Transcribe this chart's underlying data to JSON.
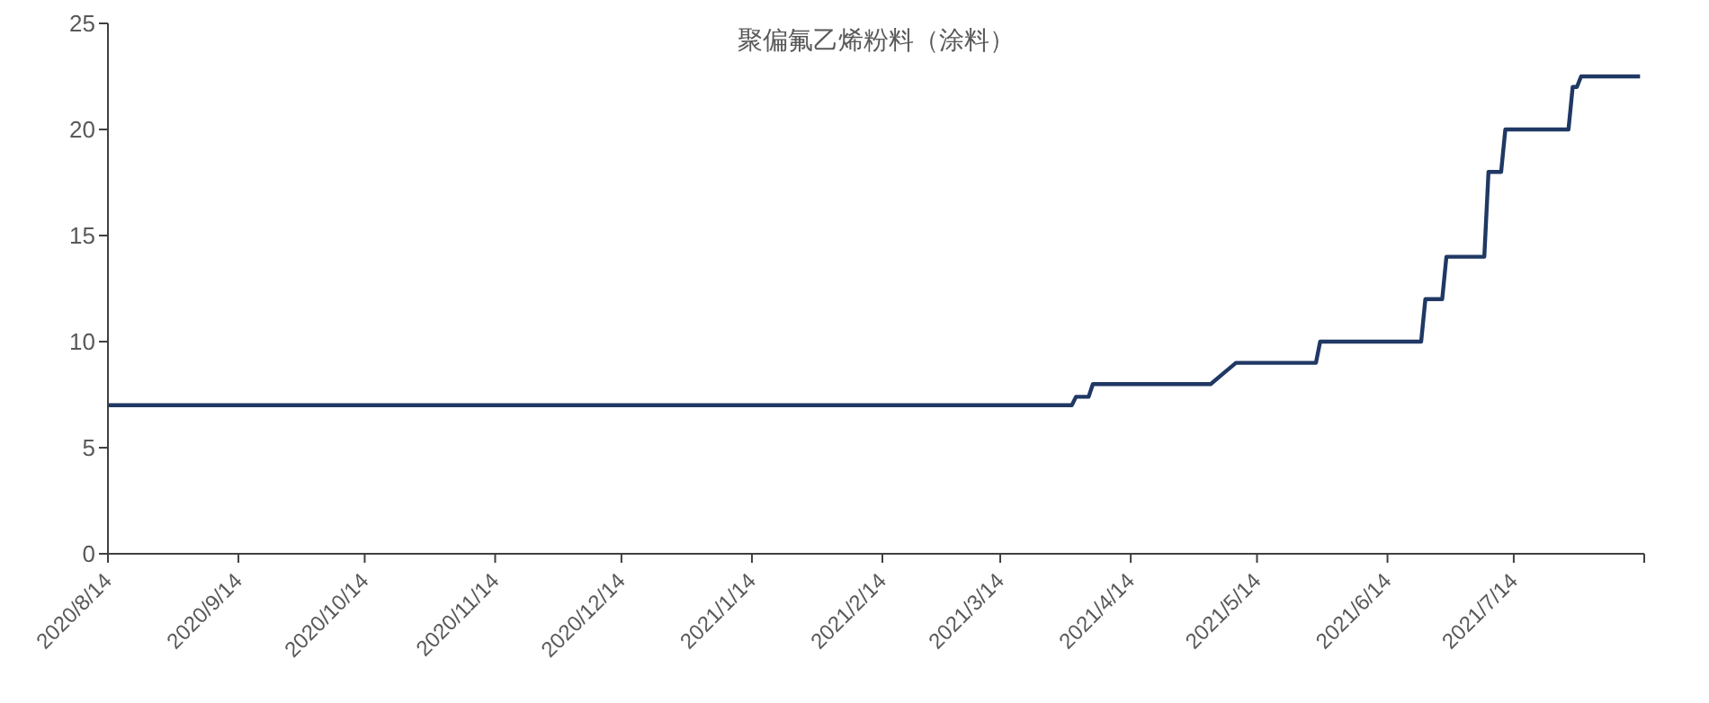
{
  "chart_data": {
    "type": "line",
    "title": "聚偏氟乙烯粉料（涂料）",
    "x": [
      "2020-08-14",
      "2021-03-31",
      "2021-04-01",
      "2021-04-04",
      "2021-04-05",
      "2021-05-03",
      "2021-05-06",
      "2021-05-09",
      "2021-05-28",
      "2021-05-29",
      "2021-06-22",
      "2021-06-23",
      "2021-06-27",
      "2021-06-28",
      "2021-07-07",
      "2021-07-08",
      "2021-07-11",
      "2021-07-12",
      "2021-07-27",
      "2021-07-28",
      "2021-07-29",
      "2021-07-30",
      "2021-08-13"
    ],
    "series": [
      {
        "color": "#203864",
        "values": [
          7,
          7,
          7.4,
          7.4,
          8,
          8,
          8.5,
          9,
          9,
          10,
          10,
          12,
          12,
          14,
          14,
          18,
          18,
          20,
          20,
          22,
          22,
          22.5,
          22.5
        ]
      }
    ],
    "xlim": [
      "2020-08-14",
      "2021-08-14"
    ],
    "xticks": [
      {
        "value": "2020-08-14",
        "label": "2020/8/14"
      },
      {
        "value": "2020-09-14",
        "label": "2020/9/14"
      },
      {
        "value": "2020-10-14",
        "label": "2020/10/14"
      },
      {
        "value": "2020-11-14",
        "label": "2020/11/14"
      },
      {
        "value": "2020-12-14",
        "label": "2020/12/14"
      },
      {
        "value": "2021-01-14",
        "label": "2021/1/14"
      },
      {
        "value": "2021-02-14",
        "label": "2021/2/14"
      },
      {
        "value": "2021-03-14",
        "label": "2021/3/14"
      },
      {
        "value": "2021-04-14",
        "label": "2021/4/14"
      },
      {
        "value": "2021-05-14",
        "label": "2021/5/14"
      },
      {
        "value": "2021-06-14",
        "label": "2021/6/14"
      },
      {
        "value": "2021-07-14",
        "label": "2021/7/14"
      },
      {
        "value": "2021-08-14",
        "label": null
      }
    ],
    "ylim": [
      0,
      25
    ],
    "yticks": [
      0,
      5,
      10,
      15,
      20,
      25
    ],
    "grid": false,
    "legend": false,
    "marker": "none",
    "line_style": "solid"
  }
}
